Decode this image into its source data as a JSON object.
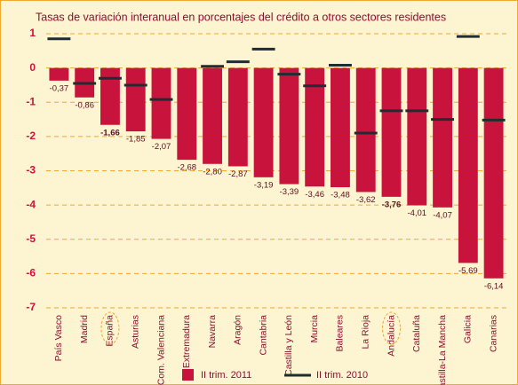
{
  "chart_data": {
    "type": "bar",
    "title": "Tasas de variación interanual en porcentajes del crédito a otros sectores residentes",
    "categories": [
      "País Vasco",
      "Madrid",
      "España",
      "Asturias",
      "Com. Valenciana",
      "Extremadura",
      "Navarra",
      "Aragón",
      "Cantabria",
      "Castilla y León",
      "Murcia",
      "Baleares",
      "La Rioja",
      "Andalucía",
      "Cataluña",
      "Castilla-La Mancha",
      "Galicia",
      "Canarias"
    ],
    "series": [
      {
        "name": "II trim. 2011",
        "color": "#c8143c",
        "values": [
          -0.37,
          -0.86,
          -1.66,
          -1.85,
          -2.07,
          -2.68,
          -2.8,
          -2.87,
          -3.19,
          -3.39,
          -3.46,
          -3.48,
          -3.62,
          -3.76,
          -4.01,
          -4.07,
          -5.69,
          -6.14
        ],
        "value_labels": [
          "-0,37",
          "-0,86",
          "-1,66",
          "-1,85",
          "-2,07",
          "-2,68",
          "-2,80",
          "-2,87",
          "-3,19",
          "-3,39",
          "-3,46",
          "-3,48",
          "-3,62",
          "-3,76",
          "-4,01",
          "-4,07",
          "-5,69",
          "-6,14"
        ]
      },
      {
        "name": "II trim. 2010",
        "color": "#1f2d33",
        "values": [
          0.85,
          -0.45,
          -0.3,
          -0.5,
          -0.92,
          null,
          0.05,
          0.18,
          0.55,
          -0.18,
          -0.52,
          0.08,
          -1.9,
          -1.25,
          -1.25,
          -1.5,
          0.92,
          -1.52
        ]
      }
    ],
    "ylim": [
      -7,
      1
    ],
    "yticks": [
      1,
      0,
      -1,
      -2,
      -3,
      -4,
      -5,
      -6,
      -7
    ],
    "grid": true
  }
}
